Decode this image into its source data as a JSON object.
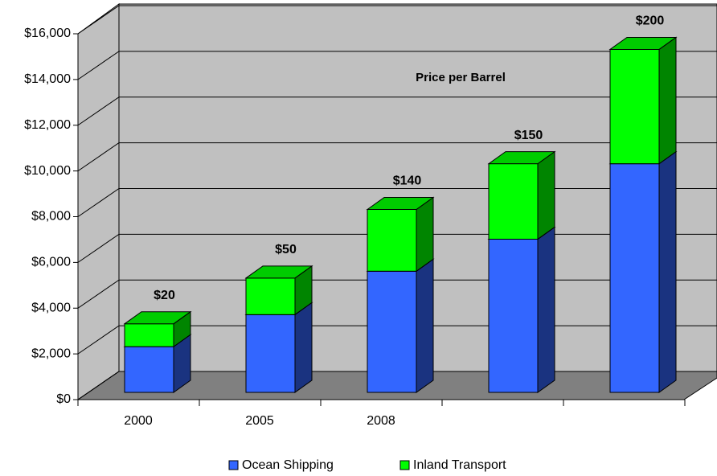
{
  "chart_data": {
    "type": "bar3d_stacked",
    "annotation": "Price per Barrel",
    "categories": [
      "2000",
      "2005",
      "2008",
      null,
      null
    ],
    "bar_labels": [
      "$20",
      "$50",
      "$140",
      "$150",
      "$200"
    ],
    "series": [
      {
        "name": "Ocean Shipping",
        "color": "#3366ff",
        "values": [
          2000,
          3400,
          5300,
          6700,
          10000
        ]
      },
      {
        "name": "Inland Transport",
        "color": "#00ff00",
        "values": [
          1000,
          1600,
          2700,
          3300,
          5000
        ]
      }
    ],
    "ylim": [
      0,
      16000
    ],
    "yticks": [
      {
        "value": 0,
        "label": "$0"
      },
      {
        "value": 2000,
        "label": "$2,000"
      },
      {
        "value": 4000,
        "label": "$4,000"
      },
      {
        "value": 6000,
        "label": "$6,000"
      },
      {
        "value": 8000,
        "label": "$8,000"
      },
      {
        "value": 10000,
        "label": "$10,000"
      },
      {
        "value": 12000,
        "label": "$12,000"
      },
      {
        "value": 14000,
        "label": "$14,000"
      },
      {
        "value": 16000,
        "label": "$16,000"
      }
    ],
    "grid": true,
    "legend": "bottom"
  }
}
